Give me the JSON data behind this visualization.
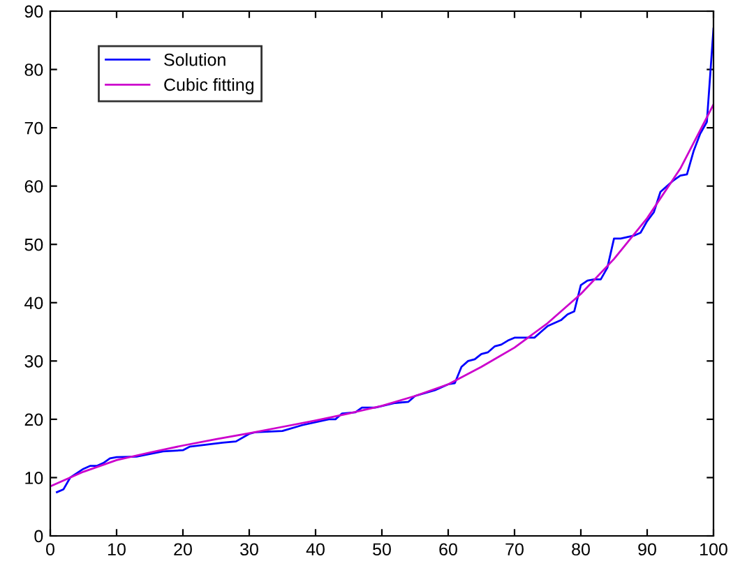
{
  "chart_data": {
    "type": "line",
    "xlim": [
      0,
      100
    ],
    "ylim": [
      0,
      90
    ],
    "xticks": [
      0,
      10,
      20,
      30,
      40,
      50,
      60,
      70,
      80,
      90,
      100
    ],
    "yticks": [
      0,
      10,
      20,
      30,
      40,
      50,
      60,
      70,
      80,
      90
    ],
    "grid": false,
    "legend": "top left",
    "series": [
      {
        "name": "Solution",
        "color": "#0000ff",
        "x": [
          1,
          2,
          3,
          5,
          6,
          7,
          8,
          9,
          10,
          13,
          17,
          20,
          21,
          26,
          28,
          30,
          31,
          35,
          38,
          42,
          43,
          44,
          46,
          47,
          49,
          52,
          54,
          55,
          58,
          60,
          61,
          62,
          63,
          64,
          65,
          66,
          67,
          68,
          69,
          70,
          73,
          74,
          75,
          77,
          78,
          79,
          80,
          81,
          82,
          83,
          84,
          85,
          86,
          88,
          89,
          90,
          91,
          92,
          93,
          94,
          95,
          96,
          97,
          98,
          99,
          100
        ],
        "values": [
          7.5,
          8,
          10,
          11.5,
          12,
          12,
          12.5,
          13.3,
          13.5,
          13.6,
          14.5,
          14.7,
          15.3,
          16,
          16.2,
          17.5,
          17.8,
          18,
          19,
          20,
          20,
          21,
          21.2,
          22,
          22,
          22.8,
          23,
          24,
          25,
          26,
          26.2,
          29,
          30,
          30.3,
          31.2,
          31.5,
          32.5,
          32.8,
          33.5,
          34,
          34,
          35,
          36,
          37,
          38,
          38.5,
          43,
          43.8,
          44,
          44,
          46,
          51,
          51,
          51.5,
          52,
          54,
          55.5,
          59,
          60,
          61,
          61.8,
          62,
          66,
          69,
          71,
          87
        ]
      },
      {
        "name": "Cubic fitting",
        "color": "#cc00cc",
        "x": [
          0,
          5,
          10,
          15,
          20,
          25,
          30,
          35,
          40,
          45,
          50,
          55,
          60,
          65,
          70,
          75,
          80,
          85,
          90,
          95,
          100
        ],
        "values": [
          8.5,
          11,
          13,
          14.3,
          15.5,
          16.6,
          17.6,
          18.7,
          19.8,
          21,
          22.3,
          24,
          26,
          29,
          32.3,
          36.5,
          41.5,
          47.5,
          54.5,
          63,
          74
        ]
      }
    ]
  }
}
